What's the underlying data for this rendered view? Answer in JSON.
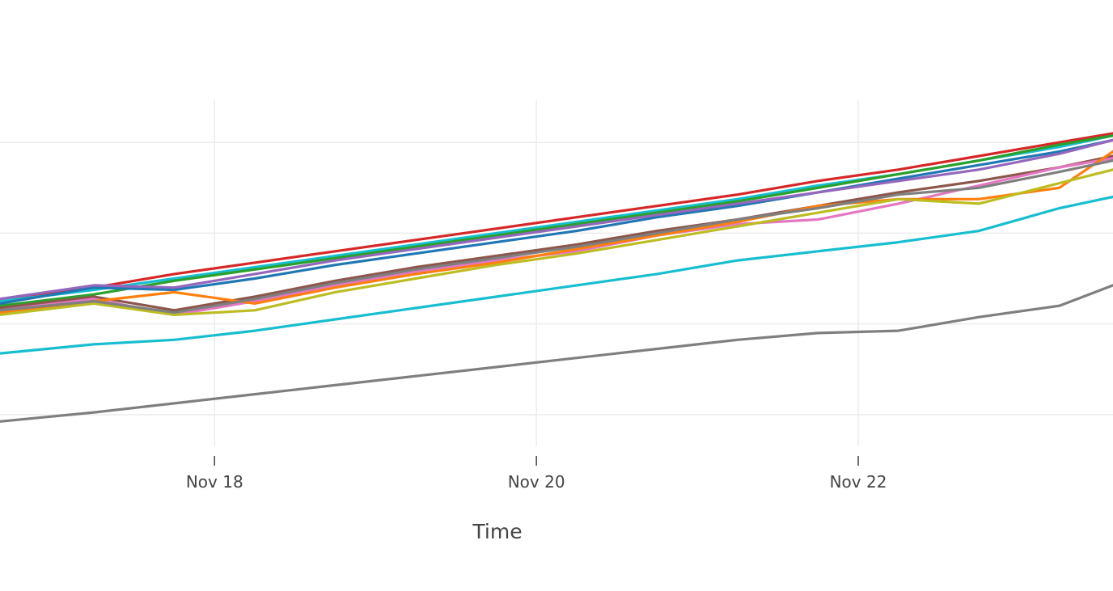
{
  "chart_data": {
    "type": "line",
    "xlabel": "Time",
    "ylabel": "",
    "xlim": [
      "2020-11-16T16:00",
      "2020-11-23T14:00"
    ],
    "x_ticks": [
      {
        "x": "2020-11-18",
        "label": "Nov 18"
      },
      {
        "x": "2020-11-20",
        "label": "Nov 20"
      },
      {
        "x": "2020-11-22",
        "label": "Nov 22"
      }
    ],
    "ylim": [
      5,
      160
    ],
    "y_gridlines": [
      20,
      60,
      100,
      140
    ],
    "grid": true,
    "x": [
      "2020-11-16T16:00",
      "2020-11-17T06:00",
      "2020-11-17T18:00",
      "2020-11-18T06:00",
      "2020-11-18T18:00",
      "2020-11-19T06:00",
      "2020-11-19T18:00",
      "2020-11-20T06:00",
      "2020-11-20T18:00",
      "2020-11-21T06:00",
      "2020-11-21T18:00",
      "2020-11-22T06:00",
      "2020-11-22T18:00",
      "2020-11-23T06:00",
      "2020-11-23T14:00"
    ],
    "series": [
      {
        "color": "#d62728",
        "values": [
          71,
          76,
          82,
          87,
          92,
          97,
          102,
          107,
          112,
          117,
          123,
          128,
          134,
          140,
          144
        ]
      },
      {
        "color": "#17becf",
        "values": [
          70,
          75,
          80,
          85,
          90,
          95,
          100,
          105,
          110,
          115,
          121,
          126,
          132,
          138,
          143
        ]
      },
      {
        "color": "#2ca02c",
        "values": [
          68,
          73,
          79,
          84,
          89,
          94,
          99,
          104,
          109,
          114,
          120,
          126,
          132,
          139,
          143
        ]
      },
      {
        "color": "#1f77b4",
        "values": [
          69,
          76,
          75,
          80,
          86,
          91,
          96,
          101,
          107,
          112,
          118,
          124,
          130,
          136,
          141
        ]
      },
      {
        "color": "#9467bd",
        "values": [
          71,
          77,
          76,
          82,
          88,
          93,
          98,
          103,
          108,
          113,
          118,
          123,
          128,
          135,
          141
        ]
      },
      {
        "color": "#8c564b",
        "values": [
          67,
          72,
          66,
          72,
          79,
          85,
          90,
          95,
          101,
          106,
          112,
          118,
          123,
          129,
          134
        ]
      },
      {
        "color": "#e377c2",
        "values": [
          66,
          71,
          64,
          70,
          77,
          83,
          88,
          92,
          99,
          104,
          106,
          113,
          121,
          129,
          133
        ]
      },
      {
        "color": "#ff7f0e",
        "values": [
          65,
          70,
          74,
          69,
          76,
          82,
          87,
          93,
          99,
          105,
          112,
          115,
          115,
          120,
          136
        ]
      },
      {
        "color": "#bcbd22",
        "values": [
          64,
          69,
          64,
          66,
          74,
          80,
          86,
          91,
          97,
          103,
          109,
          115,
          113,
          122,
          128
        ]
      },
      {
        "color": "#7f7f7f",
        "values": [
          66,
          70,
          65,
          71,
          78,
          84,
          89,
          94,
          100,
          106,
          111,
          117,
          120,
          127,
          132
        ]
      },
      {
        "color": "#17becf",
        "values": [
          47,
          51,
          53,
          57,
          62,
          67,
          72,
          77,
          82,
          88,
          92,
          96,
          101,
          111,
          116
        ]
      },
      {
        "color": "#7f7f7f",
        "values": [
          17,
          21,
          25,
          29,
          33,
          37,
          41,
          45,
          49,
          53,
          56,
          57,
          63,
          68,
          77
        ]
      }
    ]
  }
}
